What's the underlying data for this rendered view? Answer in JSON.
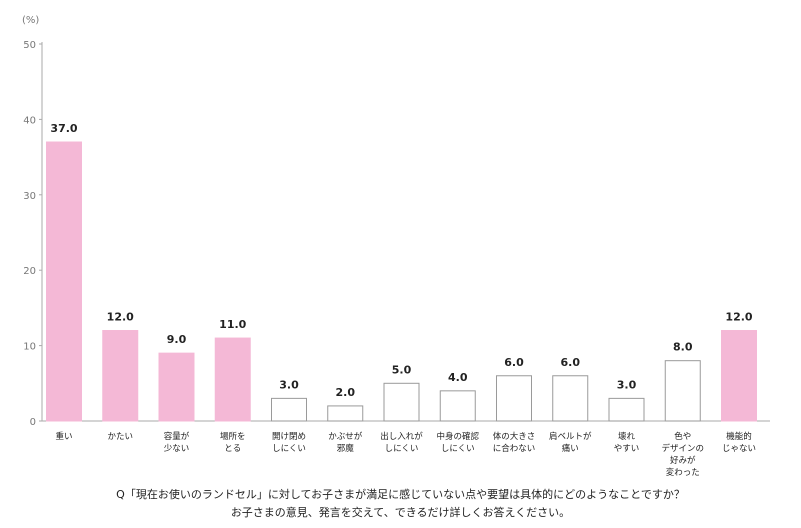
{
  "chart_data": {
    "type": "bar",
    "unit_label": "(%)",
    "ylim": [
      0,
      50
    ],
    "yticks": [
      0,
      10,
      20,
      30,
      40,
      50
    ],
    "categories": [
      [
        "重い"
      ],
      [
        "かたい"
      ],
      [
        "容量が",
        "少ない"
      ],
      [
        "場所を",
        "とる"
      ],
      [
        "開け閉め",
        "しにくい"
      ],
      [
        "かぶせが",
        "邪魔"
      ],
      [
        "出し入れが",
        "しにくい"
      ],
      [
        "中身の確認",
        "しにくい"
      ],
      [
        "体の大きさ",
        "に合わない"
      ],
      [
        "肩ベルトが",
        "痛い"
      ],
      [
        "壊れ",
        "やすい"
      ],
      [
        "色や",
        "デザインの",
        "好みが",
        "変わった"
      ],
      [
        "機能的",
        "じゃない"
      ]
    ],
    "values": [
      37.0,
      12.0,
      9.0,
      11.0,
      3.0,
      2.0,
      5.0,
      4.0,
      6.0,
      6.0,
      3.0,
      8.0,
      12.0
    ],
    "value_labels": [
      "37.0",
      "12.0",
      "9.0",
      "11.0",
      "3.0",
      "2.0",
      "5.0",
      "4.0",
      "6.0",
      "6.0",
      "3.0",
      "8.0",
      "12.0"
    ],
    "highlighted": [
      true,
      true,
      true,
      true,
      false,
      false,
      false,
      false,
      false,
      false,
      false,
      false,
      true
    ],
    "colors": {
      "highlight": "#f4b8d6",
      "plain": "#ffffff",
      "outline": "#9a9a9a",
      "axis": "#aaaaaa"
    }
  },
  "question": {
    "line1": "Q「現在お使いのランドセル」に対してお子さまが満足に感じていない点や要望は具体的にどのようなことですか？",
    "line2": "お子さまの意見、発言を交えて、できるだけ詳しくお答えください。"
  }
}
